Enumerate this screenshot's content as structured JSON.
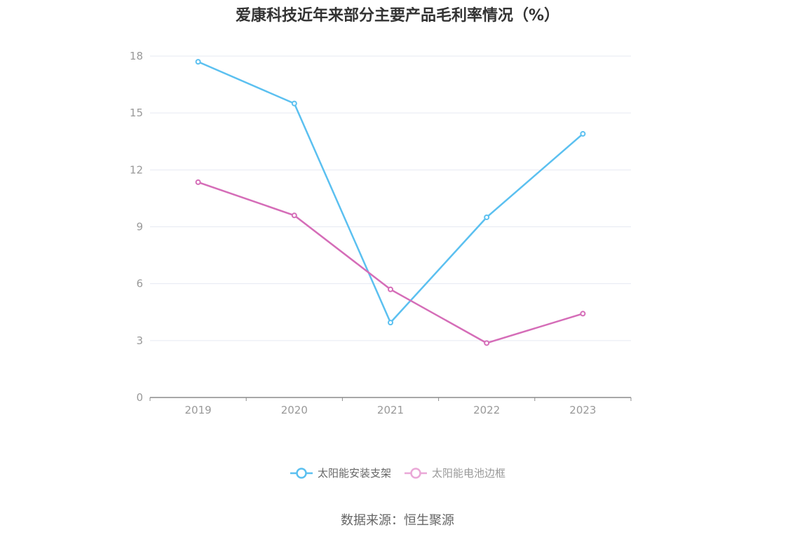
{
  "chart_data": {
    "type": "line",
    "title": "爱康科技近年来部分主要产品毛利率情况（%）",
    "categories": [
      "2019",
      "2020",
      "2021",
      "2022",
      "2023"
    ],
    "series": [
      {
        "name": "太阳能安装支架",
        "color": "#5bc0f0",
        "values": [
          17.7,
          15.5,
          3.95,
          9.5,
          13.9
        ]
      },
      {
        "name": "太阳能电池边框",
        "color": "#d56db8",
        "values": [
          11.35,
          9.6,
          5.7,
          2.87,
          4.42
        ]
      }
    ],
    "ylim": [
      0,
      18
    ],
    "yticks": [
      0,
      3,
      6,
      9,
      12,
      15,
      18
    ],
    "grid": true,
    "legend_position": "bottom"
  },
  "source": "数据来源：恒生聚源"
}
